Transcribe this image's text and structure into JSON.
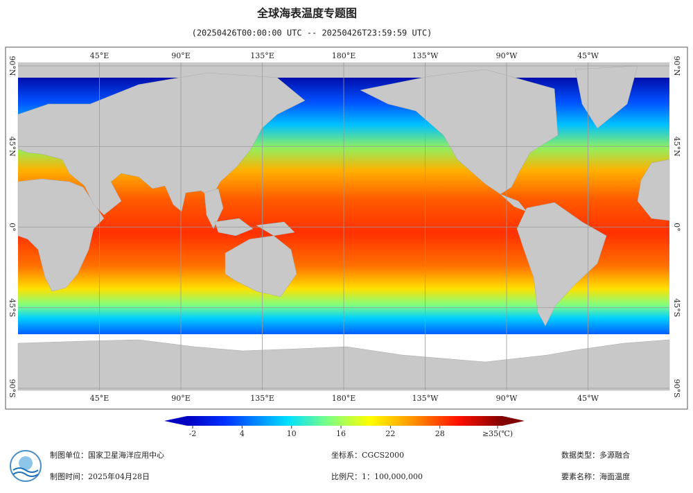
{
  "chart_data": {
    "type": "map",
    "title": "全球海表温度专题图",
    "subtitle": "(20250426T00:00:00 UTC -- 20250426T23:59:59 UTC)",
    "xlim": [
      0,
      360
    ],
    "ylim": [
      -90,
      90
    ],
    "xticks": [
      {
        "value": 45,
        "label": "45°E"
      },
      {
        "value": 90,
        "label": "90°E"
      },
      {
        "value": 135,
        "label": "135°E"
      },
      {
        "value": 180,
        "label": "180°E"
      },
      {
        "value": -135,
        "label": "135°W"
      },
      {
        "value": -90,
        "label": "90°W"
      },
      {
        "value": -45,
        "label": "45°W"
      }
    ],
    "yticks": [
      {
        "value": 90,
        "label": "90°N"
      },
      {
        "value": 45,
        "label": "45°N"
      },
      {
        "value": 0,
        "label": "0°"
      },
      {
        "value": -45,
        "label": "45°S"
      },
      {
        "value": -90,
        "label": "90°S"
      }
    ],
    "grid": true,
    "colorbar": {
      "clim": [
        -2,
        35
      ],
      "ticks": [
        -2,
        4,
        10,
        16,
        22,
        28,
        {
          "value": 35,
          "label": "≥35(℃)"
        }
      ]
    },
    "footer": {
      "unit": "制图单位：国家卫星海洋应用中心",
      "date": "制图时间：2025年04月28日",
      "crs": "坐标系：CGCS2000",
      "scale": "比例尺：1：100,000,000",
      "data_type": "数据类型：多源融合",
      "element": "要素名称：海面温度"
    }
  }
}
